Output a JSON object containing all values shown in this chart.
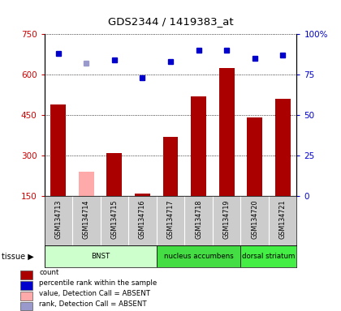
{
  "title": "GDS2344 / 1419383_at",
  "samples": [
    "GSM134713",
    "GSM134714",
    "GSM134715",
    "GSM134716",
    "GSM134717",
    "GSM134718",
    "GSM134719",
    "GSM134720",
    "GSM134721"
  ],
  "bar_values": [
    490,
    240,
    310,
    160,
    370,
    520,
    625,
    440,
    510
  ],
  "bar_colors": [
    "#aa0000",
    "#ffaaaa",
    "#aa0000",
    "#aa0000",
    "#aa0000",
    "#aa0000",
    "#aa0000",
    "#aa0000",
    "#aa0000"
  ],
  "rank_values": [
    88,
    82,
    84,
    73,
    83,
    90,
    90,
    85,
    87
  ],
  "rank_colors": [
    "#0000cc",
    "#9999cc",
    "#0000cc",
    "#0000cc",
    "#0000cc",
    "#0000cc",
    "#0000cc",
    "#0000cc",
    "#0000cc"
  ],
  "ylim_left": [
    150,
    750
  ],
  "ylim_right": [
    0,
    100
  ],
  "yticks_left": [
    150,
    300,
    450,
    600,
    750
  ],
  "yticks_right": [
    0,
    25,
    50,
    75,
    100
  ],
  "tissue_groups": [
    {
      "label": "BNST",
      "start": 0,
      "end": 3,
      "color": "#ccffcc"
    },
    {
      "label": "nucleus accumbens",
      "start": 4,
      "end": 6,
      "color": "#44dd44"
    },
    {
      "label": "dorsal striatum",
      "start": 7,
      "end": 8,
      "color": "#44ee44"
    }
  ],
  "tissue_label": "tissue",
  "legend_items": [
    {
      "color": "#aa0000",
      "label": "count",
      "marker": "s"
    },
    {
      "color": "#0000cc",
      "label": "percentile rank within the sample",
      "marker": "s"
    },
    {
      "color": "#ffaaaa",
      "label": "value, Detection Call = ABSENT",
      "marker": "s"
    },
    {
      "color": "#9999cc",
      "label": "rank, Detection Call = ABSENT",
      "marker": "s"
    }
  ],
  "bar_width": 0.55,
  "bg_color": "#ffffff",
  "plot_bg": "#ffffff",
  "tick_label_color_left": "#cc0000",
  "tick_label_color_right": "#0000cc",
  "label_area_color": "#cccccc",
  "marker_size": 5
}
